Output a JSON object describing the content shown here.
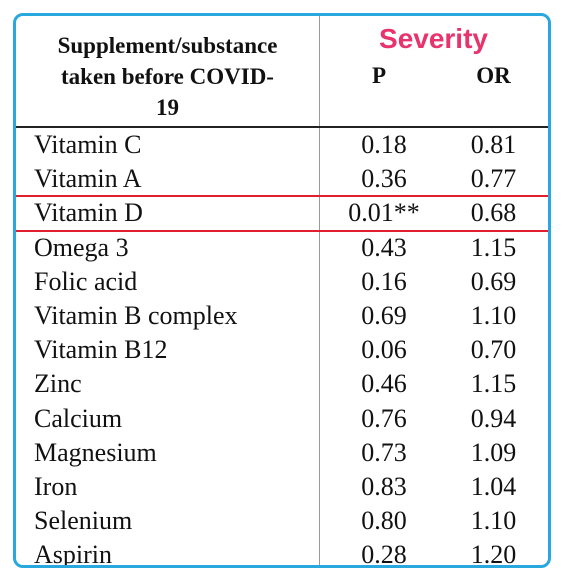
{
  "table": {
    "header": {
      "label_lines": [
        "Supplement/substance",
        "taken before COVID-",
        "19"
      ],
      "group_title": "Severity",
      "col_p": "P",
      "col_or": "OR"
    },
    "rows": [
      {
        "name": "Vitamin C",
        "p": "0.18",
        "or": "0.81"
      },
      {
        "name": "Vitamin A",
        "p": "0.36",
        "or": "0.77"
      },
      {
        "name": "Vitamin D",
        "p": "0.01**",
        "or": "0.68",
        "highlighted": true
      },
      {
        "name": "Omega 3",
        "p": "0.43",
        "or": "1.15"
      },
      {
        "name": "Folic acid",
        "p": "0.16",
        "or": "0.69"
      },
      {
        "name": "Vitamin B complex",
        "p": "0.69",
        "or": "1.10"
      },
      {
        "name": "Vitamin B12",
        "p": "0.06",
        "or": "0.70"
      },
      {
        "name": "Zinc",
        "p": "0.46",
        "or": "1.15"
      },
      {
        "name": "Calcium",
        "p": "0.76",
        "or": "0.94"
      },
      {
        "name": "Magnesium",
        "p": "0.73",
        "or": "1.09"
      },
      {
        "name": "Iron",
        "p": "0.83",
        "or": "1.04"
      },
      {
        "name": "Selenium",
        "p": "0.80",
        "or": "1.10"
      },
      {
        "name": "Aspirin",
        "p": "0.28",
        "or": "1.20"
      }
    ]
  },
  "colors": {
    "frame_border": "#29a8e0",
    "severity_title": "#e8336d",
    "highlight_line": "#e02030"
  }
}
